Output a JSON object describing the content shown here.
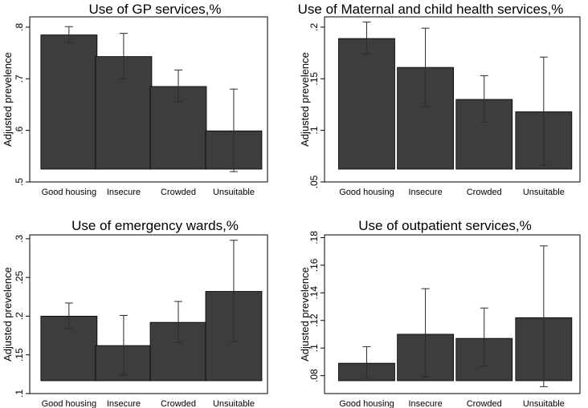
{
  "chart_data": [
    {
      "type": "bar",
      "title": "Use of GP services,%",
      "ylabel": "Adjusted prevelence",
      "xlabel": "",
      "categories": [
        "Good housing",
        "Insecure",
        "Crowded",
        "Unsuitable"
      ],
      "values": [
        0.785,
        0.743,
        0.685,
        0.599
      ],
      "error_low": [
        0.77,
        0.7,
        0.655,
        0.52
      ],
      "error_high": [
        0.801,
        0.788,
        0.717,
        0.68
      ],
      "ylim": [
        0.5,
        0.82
      ],
      "yticks": [
        0.5,
        0.6,
        0.7,
        0.8
      ],
      "ytick_labels": [
        ".5",
        ".6",
        ".7",
        ".8"
      ]
    },
    {
      "type": "bar",
      "title": "Use of Maternal and child health services,%",
      "ylabel": "Adjusted prevelence",
      "xlabel": "",
      "categories": [
        "Good housing",
        "Insecure",
        "Crowded",
        "Unsuitable"
      ],
      "values": [
        0.189,
        0.161,
        0.13,
        0.118
      ],
      "error_low": [
        0.174,
        0.123,
        0.108,
        0.066
      ],
      "error_high": [
        0.205,
        0.199,
        0.153,
        0.171
      ],
      "ylim": [
        0.05,
        0.21
      ],
      "yticks": [
        0.05,
        0.1,
        0.15,
        0.2
      ],
      "ytick_labels": [
        ".05",
        ".1",
        ".15",
        ".2"
      ]
    },
    {
      "type": "bar",
      "title": "Use of emergency wards,%",
      "ylabel": "Adjusted prevelence",
      "xlabel": "",
      "categories": [
        "Good housing",
        "Insecure",
        "Crowded",
        "Unsuitable"
      ],
      "values": [
        0.2,
        0.162,
        0.192,
        0.232
      ],
      "error_low": [
        0.184,
        0.124,
        0.166,
        0.167
      ],
      "error_high": [
        0.217,
        0.201,
        0.219,
        0.298
      ],
      "ylim": [
        0.1,
        0.305
      ],
      "yticks": [
        0.1,
        0.15,
        0.2,
        0.25,
        0.3
      ],
      "ytick_labels": [
        ".1",
        ".15",
        ".2",
        ".25",
        ".3"
      ]
    },
    {
      "type": "bar",
      "title": "Use of outpatient services,%",
      "ylabel": "Adjusted prevelence",
      "xlabel": "",
      "categories": [
        "Good housing",
        "Insecure",
        "Crowded",
        "Unsuitable"
      ],
      "values": [
        0.089,
        0.11,
        0.107,
        0.122
      ],
      "error_low": [
        0.078,
        0.079,
        0.087,
        0.072
      ],
      "error_high": [
        0.101,
        0.143,
        0.129,
        0.174
      ],
      "ylim": [
        0.067,
        0.182
      ],
      "yticks": [
        0.08,
        0.1,
        0.12,
        0.14,
        0.16,
        0.18
      ],
      "ytick_labels": [
        ".08",
        ".1",
        ".12",
        ".14",
        ".16",
        ".18"
      ]
    }
  ],
  "colors": {
    "bar": "#3d3d3d",
    "frame": "#000000",
    "errorbar": "#2b2b2b"
  }
}
